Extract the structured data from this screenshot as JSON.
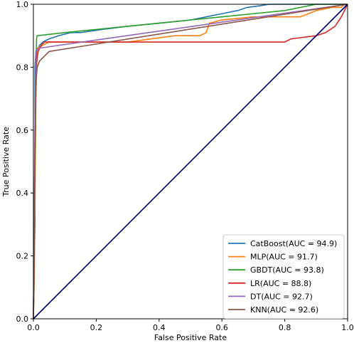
{
  "chart_data": {
    "type": "line",
    "xlabel": "False Positive Rate",
    "ylabel": "True Positive Rate",
    "xlim": [
      0,
      1
    ],
    "ylim": [
      0,
      1
    ],
    "xticks": [
      "0.0",
      "0.2",
      "0.4",
      "0.6",
      "0.8",
      "1.0"
    ],
    "yticks": [
      "0.0",
      "0.2",
      "0.4",
      "0.6",
      "0.8",
      "1.0"
    ],
    "grid": false,
    "legend_position": "lower-right",
    "series": [
      {
        "name": "CatBoost(AUC = 94.9)",
        "color": "#1f77b4",
        "x": [
          0,
          0.0,
          0.005,
          0.005,
          0.008,
          0.012,
          0.015,
          0.02,
          0.03,
          0.05,
          0.08,
          0.12,
          0.15,
          0.22,
          0.3,
          0.4,
          0.5,
          0.55,
          0.6,
          0.65,
          0.68,
          0.72,
          0.75,
          1.0
        ],
        "y": [
          0,
          0.05,
          0.3,
          0.8,
          0.85,
          0.86,
          0.86,
          0.87,
          0.88,
          0.89,
          0.9,
          0.91,
          0.91,
          0.92,
          0.93,
          0.94,
          0.95,
          0.96,
          0.97,
          0.98,
          0.99,
          0.995,
          1.0,
          1.0
        ]
      },
      {
        "name": "MLP(AUC = 91.7)",
        "color": "#ff7f0e",
        "x": [
          0,
          0.003,
          0.008,
          0.012,
          0.03,
          0.05,
          0.15,
          0.3,
          0.45,
          0.53,
          0.55,
          0.56,
          0.6,
          0.7,
          0.8,
          0.85,
          0.9,
          0.95,
          0.97,
          0.98,
          0.99,
          1.0
        ],
        "y": [
          0,
          0.15,
          0.7,
          0.86,
          0.87,
          0.88,
          0.88,
          0.88,
          0.9,
          0.9,
          0.91,
          0.94,
          0.95,
          0.96,
          0.96,
          0.96,
          0.98,
          0.99,
          0.99,
          0.99,
          1.0,
          1.0
        ]
      },
      {
        "name": "GBDT(AUC = 93.8)",
        "color": "#2ca02c",
        "x": [
          0,
          0.005,
          0.01,
          0.012,
          0.1,
          0.2,
          0.3,
          0.4,
          0.5,
          0.6,
          0.7,
          0.8,
          0.9,
          1.0
        ],
        "y": [
          0,
          0.5,
          0.89,
          0.9,
          0.91,
          0.92,
          0.93,
          0.94,
          0.95,
          0.96,
          0.97,
          0.98,
          1.0,
          1.0
        ]
      },
      {
        "name": "LR(AUC = 88.8)",
        "color": "#d62728",
        "x": [
          0,
          0.002,
          0.004,
          0.006,
          0.008,
          0.012,
          0.015,
          0.02,
          0.025,
          0.035,
          0.05,
          0.8,
          0.82,
          0.9,
          0.93,
          0.96,
          0.98,
          1.0
        ],
        "y": [
          0,
          0.2,
          0.5,
          0.7,
          0.8,
          0.83,
          0.85,
          0.86,
          0.87,
          0.88,
          0.88,
          0.88,
          0.89,
          0.9,
          0.91,
          0.93,
          0.96,
          1.0
        ]
      },
      {
        "name": "DT(AUC = 92.7)",
        "color": "#9467bd",
        "x": [
          0,
          0.002,
          0.005,
          0.008,
          0.01,
          0.015,
          1.0
        ],
        "y": [
          0,
          0.2,
          0.6,
          0.84,
          0.85,
          0.86,
          1.0
        ]
      },
      {
        "name": "KNN(AUC = 92.6)",
        "color": "#8c564b",
        "x": [
          0,
          0.002,
          0.005,
          0.008,
          0.012,
          0.02,
          0.05,
          1.0
        ],
        "y": [
          0,
          0.1,
          0.5,
          0.75,
          0.8,
          0.82,
          0.85,
          1.0
        ]
      },
      {
        "name": "",
        "color": "#000080",
        "x": [
          0,
          1
        ],
        "y": [
          0,
          1
        ]
      }
    ]
  }
}
